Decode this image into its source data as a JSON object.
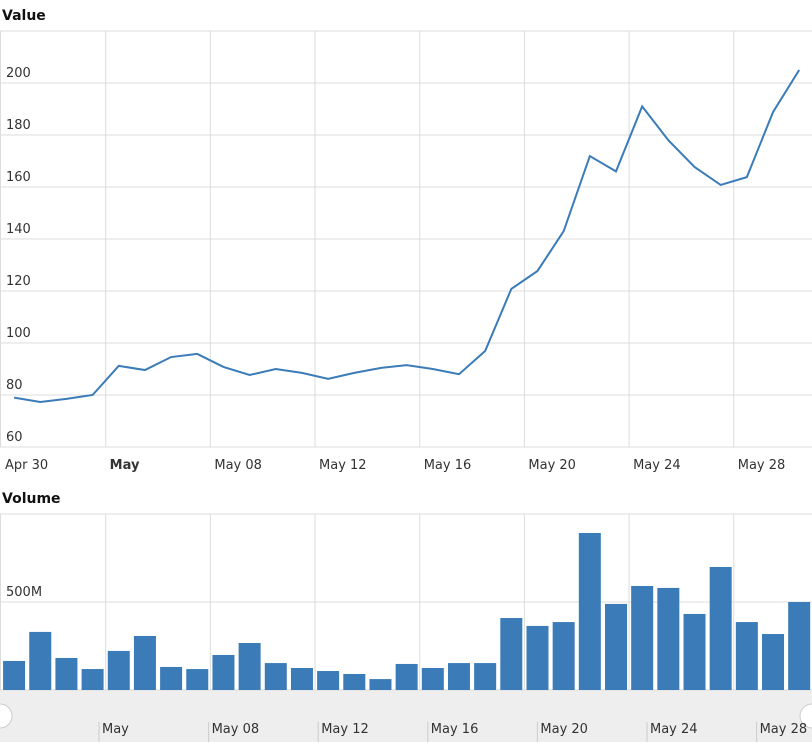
{
  "chart_data": [
    {
      "type": "line",
      "title": "Value",
      "color": "#3a7bb8",
      "categories": [
        "Apr 30",
        "May 01",
        "May 02",
        "May 03",
        "May 04",
        "May 05",
        "May 06",
        "May 07",
        "May 08",
        "May 09",
        "May 10",
        "May 11",
        "May 12",
        "May 13",
        "May 14",
        "May 15",
        "May 16",
        "May 17",
        "May 18",
        "May 19",
        "May 20",
        "May 21",
        "May 22",
        "May 23",
        "May 24",
        "May 25",
        "May 26",
        "May 27",
        "May 28",
        "May 29",
        "May 30"
      ],
      "values": [
        79,
        77.3,
        78.5,
        80,
        91.2,
        89.6,
        94.6,
        95.8,
        90.8,
        87.7,
        90,
        88.5,
        86.2,
        88.5,
        90.4,
        91.5,
        90,
        88,
        96.9,
        120.8,
        127.7,
        143,
        171.9,
        166,
        191,
        178,
        167.7,
        160.8,
        163.8,
        188.8,
        205
      ],
      "ylim": [
        60,
        220
      ],
      "yticks": [
        60,
        80,
        100,
        120,
        140,
        160,
        180,
        200
      ],
      "xticks": [
        "Apr 30",
        {
          "value": "May 04",
          "label": "May"
        },
        "May 08",
        "May 12",
        "May 16",
        "May 20",
        "May 24",
        "May 28"
      ],
      "grid": true
    },
    {
      "type": "bar",
      "title": "Volume",
      "color": "#3a7bb8",
      "categories": [
        "Apr 30",
        "May 01",
        "May 02",
        "May 03",
        "May 04",
        "May 05",
        "May 06",
        "May 07",
        "May 08",
        "May 09",
        "May 10",
        "May 11",
        "May 12",
        "May 13",
        "May 14",
        "May 15",
        "May 16",
        "May 17",
        "May 18",
        "May 19",
        "May 20",
        "May 21",
        "May 22",
        "May 23",
        "May 24",
        "May 25",
        "May 26",
        "May 27",
        "May 28",
        "May 29",
        "May 30"
      ],
      "values": [
        165000000,
        330000000,
        182000000,
        119000000,
        222000000,
        307000000,
        131000000,
        119000000,
        199000000,
        267000000,
        153000000,
        125000000,
        108000000,
        91000000,
        62000000,
        148000000,
        125000000,
        153000000,
        153000000,
        409000000,
        364000000,
        386000000,
        892000000,
        489000000,
        591000000,
        580000000,
        432000000,
        699000000,
        386000000,
        318000000,
        500000000
      ],
      "ylim": [
        0,
        1000000000
      ],
      "yticks": [
        0,
        {
          "value": 500000000,
          "label": "500M"
        }
      ],
      "grid": true
    }
  ]
}
